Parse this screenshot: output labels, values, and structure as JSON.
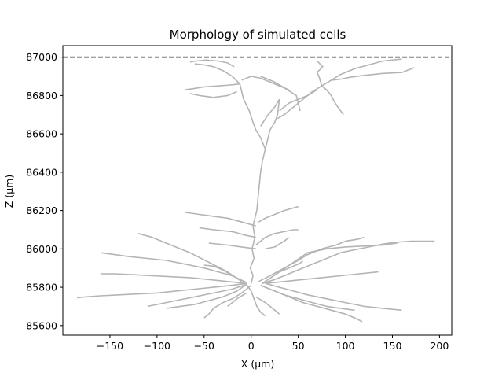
{
  "chart_data": {
    "type": "line",
    "title": "Morphology of simulated cells",
    "xlabel": "X (μm)",
    "ylabel": "Z (μm)",
    "xlim": [
      -200,
      213
    ],
    "ylim": [
      85550,
      87060
    ],
    "xticks": [
      -150,
      -100,
      -50,
      0,
      50,
      100,
      150,
      200
    ],
    "xtick_labels": [
      "−150",
      "−100",
      "−50",
      "0",
      "50",
      "100",
      "150",
      "200"
    ],
    "yticks": [
      85600,
      85800,
      86000,
      86200,
      86400,
      86600,
      86800,
      87000
    ],
    "ytick_labels": [
      "85600",
      "85800",
      "86000",
      "86200",
      "86400",
      "86600",
      "86800",
      "87000"
    ],
    "grid": false,
    "reference_line": {
      "y": 87000,
      "style": "dashed",
      "color": "#000000"
    },
    "series_color": "#b4b4b4",
    "series": [
      {
        "x": [
          0,
          2,
          -1,
          3,
          1,
          4,
          2,
          6,
          8,
          10,
          12,
          15
        ],
        "y": [
          85820,
          85860,
          85900,
          85950,
          86000,
          86060,
          86120,
          86200,
          86300,
          86400,
          86460,
          86520
        ]
      },
      {
        "x": [
          15,
          18,
          20,
          25,
          28,
          30
        ],
        "y": [
          86520,
          86580,
          86620,
          86660,
          86700,
          86780
        ]
      },
      {
        "x": [
          15,
          10,
          5,
          2,
          -2,
          -8,
          -12
        ],
        "y": [
          86520,
          86580,
          86620,
          86660,
          86720,
          86780,
          86860
        ]
      },
      {
        "x": [
          28,
          35,
          45,
          55,
          65,
          75,
          85,
          95,
          110,
          125,
          140,
          160
        ],
        "y": [
          86680,
          86700,
          86740,
          86780,
          86820,
          86850,
          86880,
          86910,
          86940,
          86960,
          86980,
          86990
        ]
      },
      {
        "x": [
          85,
          95,
          105,
          120,
          140,
          160,
          173
        ],
        "y": [
          86880,
          86885,
          86895,
          86905,
          86915,
          86920,
          86945
        ]
      },
      {
        "x": [
          75,
          80,
          85,
          88,
          92,
          98
        ],
        "y": [
          86850,
          86830,
          86800,
          86770,
          86740,
          86700
        ]
      },
      {
        "x": [
          70,
          60,
          50,
          40,
          30
        ],
        "y": [
          86830,
          86800,
          86780,
          86760,
          86720
        ]
      },
      {
        "x": [
          75,
          72,
          70,
          76,
          70
        ],
        "y": [
          86850,
          86900,
          86920,
          86950,
          86980
        ]
      },
      {
        "x": [
          -12,
          -20,
          -30,
          -40,
          -50,
          -60
        ],
        "y": [
          86860,
          86900,
          86930,
          86950,
          86960,
          86965
        ]
      },
      {
        "x": [
          -12,
          -22,
          -35,
          -50,
          -62,
          -70
        ],
        "y": [
          86860,
          86855,
          86850,
          86845,
          86835,
          86830
        ]
      },
      {
        "x": [
          -10,
          0,
          10,
          20,
          30,
          40
        ],
        "y": [
          86880,
          86900,
          86890,
          86870,
          86850,
          86830
        ]
      },
      {
        "x": [
          -18,
          -25,
          -35,
          -48,
          -58,
          -65
        ],
        "y": [
          86950,
          86970,
          86980,
          86985,
          86980,
          86975
        ]
      },
      {
        "x": [
          -15,
          -25,
          -40,
          -55,
          -65
        ],
        "y": [
          86820,
          86800,
          86790,
          86800,
          86810
        ]
      },
      {
        "x": [
          10,
          25,
          35,
          48,
          52
        ],
        "y": [
          86900,
          86870,
          86840,
          86800,
          86720
        ]
      },
      {
        "x": [
          30,
          25,
          18,
          10
        ],
        "y": [
          86780,
          86740,
          86700,
          86640
        ]
      },
      {
        "x": [
          12,
          25,
          35,
          45,
          55,
          65,
          75,
          85,
          95,
          110,
          125,
          140,
          155,
          170,
          195
        ],
        "y": [
          85820,
          85840,
          85860,
          85880,
          85900,
          85920,
          85940,
          85960,
          85980,
          85995,
          86010,
          86025,
          86035,
          86040,
          86040
        ]
      },
      {
        "x": [
          12,
          30,
          45,
          60,
          80,
          100,
          120,
          140,
          155
        ],
        "y": [
          85820,
          85880,
          85930,
          85980,
          86000,
          86010,
          86015,
          86020,
          86030
        ]
      },
      {
        "x": [
          15,
          35,
          55,
          75,
          95,
          115,
          135
        ],
        "y": [
          85820,
          85830,
          85840,
          85850,
          85860,
          85870,
          85880
        ]
      },
      {
        "x": [
          15,
          30,
          45,
          60,
          80,
          100,
          120,
          140,
          160
        ],
        "y": [
          85820,
          85800,
          85780,
          85760,
          85740,
          85720,
          85700,
          85690,
          85680
        ]
      },
      {
        "x": [
          10,
          25,
          40,
          55,
          70,
          85,
          100,
          110,
          118
        ],
        "y": [
          85810,
          85780,
          85750,
          85720,
          85700,
          85680,
          85660,
          85640,
          85620
        ]
      },
      {
        "x": [
          10,
          20,
          35,
          50,
          65,
          80,
          95,
          110
        ],
        "y": [
          85810,
          85790,
          85760,
          85740,
          85720,
          85700,
          85690,
          85680
        ]
      },
      {
        "x": [
          8,
          20,
          35,
          50,
          60,
          75,
          90,
          100,
          113,
          120
        ],
        "y": [
          85830,
          85860,
          85900,
          85940,
          85970,
          86000,
          86020,
          86040,
          86050,
          86060
        ]
      },
      {
        "x": [
          -5,
          -20,
          -40,
          -60,
          -80,
          -100,
          -120,
          -140,
          -160,
          -175,
          -185
        ],
        "y": [
          85820,
          85810,
          85800,
          85790,
          85780,
          85770,
          85765,
          85760,
          85755,
          85750,
          85745
        ]
      },
      {
        "x": [
          -5,
          -25,
          -45,
          -65,
          -85,
          -105,
          -125,
          -145,
          -160
        ],
        "y": [
          85820,
          85830,
          85840,
          85850,
          85855,
          85860,
          85865,
          85870,
          85870
        ]
      },
      {
        "x": [
          -5,
          -20,
          -35,
          -50,
          -70,
          -90,
          -110,
          -130,
          -145,
          -160
        ],
        "y": [
          85825,
          85860,
          85880,
          85900,
          85920,
          85940,
          85950,
          85960,
          85970,
          85980
        ]
      },
      {
        "x": [
          -10,
          -25,
          -45,
          -65,
          -85,
          -105,
          -120
        ],
        "y": [
          85830,
          85880,
          85930,
          85980,
          86020,
          86060,
          86080
        ]
      },
      {
        "x": [
          -5,
          -20,
          -40,
          -60,
          -80,
          -100,
          -110
        ],
        "y": [
          85815,
          85790,
          85770,
          85750,
          85730,
          85710,
          85700
        ]
      },
      {
        "x": [
          0,
          -10,
          -20,
          -30,
          -40,
          -45,
          -50
        ],
        "y": [
          85810,
          85770,
          85740,
          85720,
          85690,
          85660,
          85640
        ]
      },
      {
        "x": [
          -5,
          -15,
          -30,
          -45,
          -60,
          -75,
          -90
        ],
        "y": [
          85815,
          85780,
          85750,
          85730,
          85710,
          85700,
          85690
        ]
      },
      {
        "x": [
          -5,
          0,
          3,
          6,
          10,
          15
        ],
        "y": [
          85815,
          85780,
          85740,
          85700,
          85670,
          85650
        ]
      },
      {
        "x": [
          5,
          15,
          20,
          25,
          30
        ],
        "y": [
          85750,
          85720,
          85700,
          85680,
          85660
        ]
      },
      {
        "x": [
          -5,
          -15,
          -20,
          -25
        ],
        "y": [
          85770,
          85740,
          85720,
          85700
        ]
      },
      {
        "x": [
          -20,
          -30,
          -40,
          -50
        ],
        "y": [
          85860,
          85890,
          85910,
          85915
        ]
      },
      {
        "x": [
          30,
          40,
          50,
          55
        ],
        "y": [
          85880,
          85900,
          85920,
          85935
        ]
      },
      {
        "x": [
          5,
          10,
          15,
          25,
          35,
          45,
          50
        ],
        "y": [
          86020,
          86040,
          86060,
          86080,
          86090,
          86100,
          86100
        ]
      },
      {
        "x": [
          5,
          -5,
          -20,
          -40,
          -55
        ],
        "y": [
          86060,
          86070,
          86090,
          86100,
          86110
        ]
      },
      {
        "x": [
          5,
          -10,
          -25,
          -40,
          -55,
          -70
        ],
        "y": [
          86120,
          86140,
          86160,
          86170,
          86180,
          86190
        ]
      },
      {
        "x": [
          8,
          15,
          25,
          35,
          50
        ],
        "y": [
          86140,
          86160,
          86180,
          86200,
          86220
        ]
      },
      {
        "x": [
          5,
          -10,
          -25,
          -45
        ],
        "y": [
          86000,
          86010,
          86020,
          86030
        ]
      },
      {
        "x": [
          15,
          25,
          35,
          40
        ],
        "y": [
          86000,
          86010,
          86040,
          86060
        ]
      }
    ]
  }
}
